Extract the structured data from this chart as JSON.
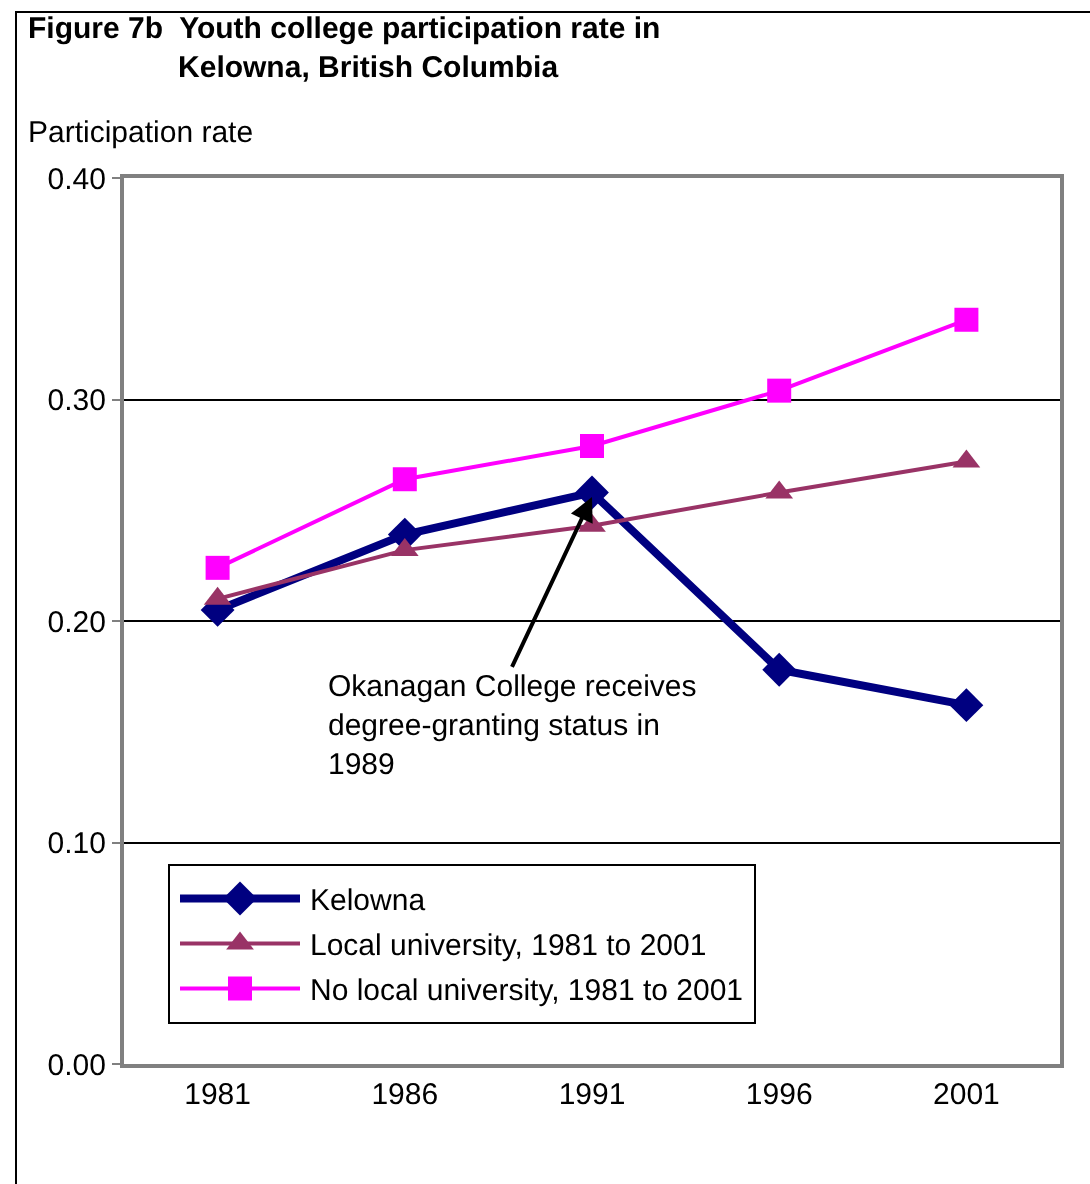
{
  "chart_data": {
    "type": "line",
    "title": "Figure 7b  Youth college participation rate in\nKelowna, British Columbia",
    "ylabel": "Participation rate",
    "categories": [
      "1981",
      "1986",
      "1991",
      "1996",
      "2001"
    ],
    "series": [
      {
        "name": "Kelowna",
        "color": "#000080",
        "marker": "diamond",
        "values": [
          0.205,
          0.239,
          0.258,
          0.178,
          0.162
        ]
      },
      {
        "name": "Local university, 1981 to 2001",
        "color": "#993366",
        "marker": "triangle",
        "values": [
          0.21,
          0.232,
          0.243,
          0.258,
          0.272
        ]
      },
      {
        "name": "No local university, 1981 to 2001",
        "color": "#ff00ff",
        "marker": "square",
        "values": [
          0.224,
          0.264,
          0.279,
          0.304,
          0.336
        ]
      }
    ],
    "ylim": [
      0,
      0.4
    ],
    "yticks": [
      {
        "value": 0,
        "label": "0.00"
      },
      {
        "value": 0.1,
        "label": "0.10"
      },
      {
        "value": 0.2,
        "label": "0.20"
      },
      {
        "value": 0.3,
        "label": "0.30"
      },
      {
        "value": 0.4,
        "label": "0.40"
      }
    ],
    "grid": "y",
    "legend": "bottom left",
    "line_style": "solid",
    "annotations": [
      {
        "text": "Okanagan College receives\ndegree-granting status in\n1989",
        "x": "1991",
        "y": 0.256
      }
    ]
  }
}
